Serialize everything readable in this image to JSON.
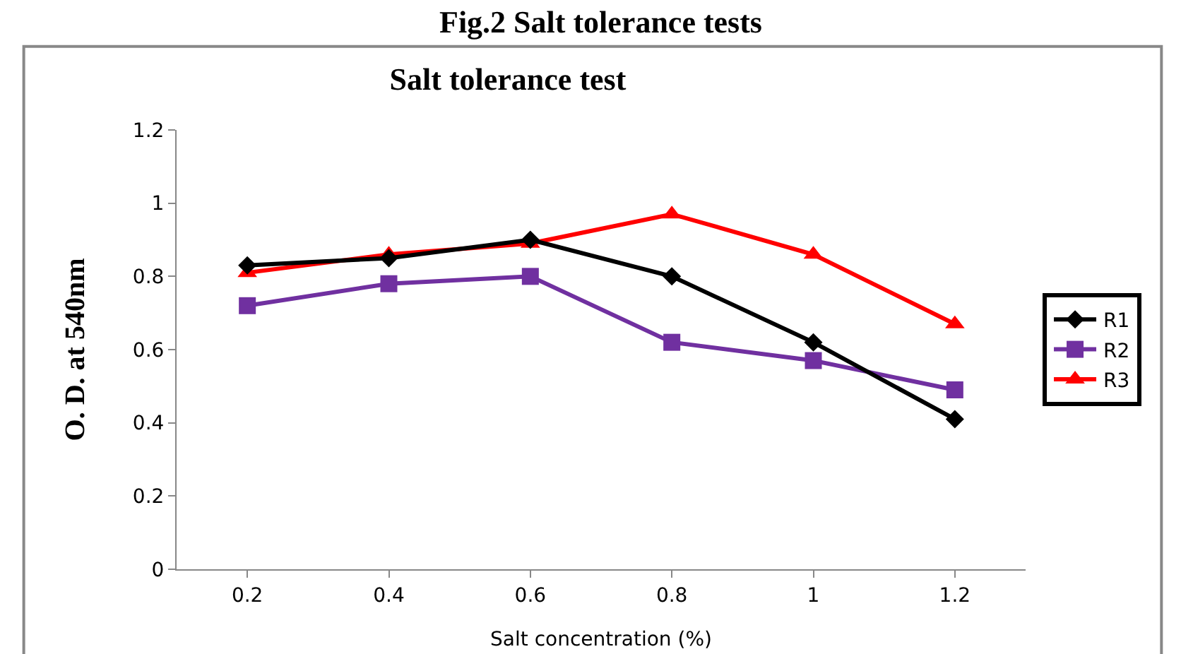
{
  "chart_data": {
    "type": "line",
    "title": "Salt tolerance test",
    "annotations": [
      "Fig.2 Salt tolerance tests"
    ],
    "xlabel": "Salt concentration (%)",
    "ylabel": "O. D. at 540nm",
    "categories": [
      "0.2",
      "0.4",
      "0.6",
      "0.8",
      "1",
      "1.2"
    ],
    "series": [
      {
        "name": "R1",
        "color": "#000000",
        "marker": "diamond",
        "values": [
          0.83,
          0.85,
          0.9,
          0.8,
          0.62,
          0.41
        ]
      },
      {
        "name": "R2",
        "color": "#7030a0",
        "marker": "square",
        "values": [
          0.72,
          0.78,
          0.8,
          0.62,
          0.57,
          0.49
        ]
      },
      {
        "name": "R3",
        "color": "#ff0000",
        "marker": "triangle",
        "values": [
          0.81,
          0.86,
          0.89,
          0.97,
          0.86,
          0.67
        ]
      }
    ],
    "ylim": [
      0,
      1.2
    ],
    "yticks": [
      0,
      0.2,
      0.4,
      0.6,
      0.8,
      1,
      1.2
    ],
    "grid": false,
    "legend": "right"
  }
}
